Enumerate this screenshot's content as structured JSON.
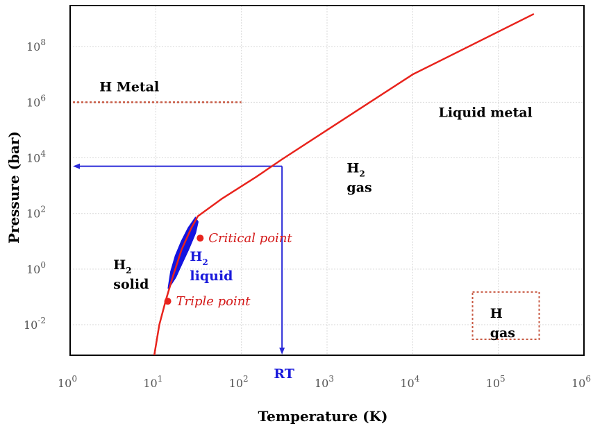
{
  "chart_data": {
    "type": "line",
    "title": "",
    "xlabel": "Temperature (K)",
    "ylabel": "Pressure (bar)",
    "xscale": "log",
    "yscale": "log",
    "xlim": [
      1,
      1000000
    ],
    "ylim": [
      0.0008,
      3000000000
    ],
    "grid": true,
    "x_ticks": [
      {
        "value": 1,
        "base": "10",
        "exp": "0"
      },
      {
        "value": 10,
        "base": "10",
        "exp": "1"
      },
      {
        "value": 100,
        "base": "10",
        "exp": "2"
      },
      {
        "value": 1000,
        "base": "10",
        "exp": "3"
      },
      {
        "value": 10000,
        "base": "10",
        "exp": "4"
      },
      {
        "value": 100000,
        "base": "10",
        "exp": "5"
      },
      {
        "value": 1000000,
        "base": "10",
        "exp": "6"
      }
    ],
    "y_ticks": [
      {
        "value": 0.01,
        "base": "10",
        "exp": "-2"
      },
      {
        "value": 1,
        "base": "10",
        "exp": "0"
      },
      {
        "value": 100,
        "base": "10",
        "exp": "2"
      },
      {
        "value": 10000,
        "base": "10",
        "exp": "4"
      },
      {
        "value": 1000000,
        "base": "10",
        "exp": "6"
      },
      {
        "value": 100000000,
        "base": "10",
        "exp": "8"
      }
    ],
    "series": [
      {
        "role": "phase-boundary",
        "color": "#e8231c",
        "points": [
          [
            9.6,
            0.0008
          ],
          [
            11,
            0.01
          ],
          [
            13,
            0.07
          ],
          [
            16,
            0.6
          ],
          [
            20,
            5
          ],
          [
            26,
            30
          ],
          [
            31,
            80
          ],
          [
            60,
            350
          ],
          [
            150,
            2100
          ],
          [
            300,
            9000
          ],
          [
            1000,
            100000
          ],
          [
            10000,
            10000000
          ],
          [
            260000,
            1500000000
          ]
        ]
      }
    ],
    "liquid_region": {
      "color": "#1414e0",
      "boundary": [
        [
          14,
          0.2
        ],
        [
          15,
          0.8
        ],
        [
          17,
          3
        ],
        [
          20,
          10
        ],
        [
          24,
          30
        ],
        [
          29,
          70
        ],
        [
          31,
          50
        ],
        [
          29,
          20
        ],
        [
          24,
          5
        ],
        [
          20,
          1.5
        ],
        [
          17,
          0.5
        ],
        [
          14,
          0.2
        ]
      ]
    },
    "points": [
      {
        "name": "critical-point",
        "x": 33,
        "y": 13,
        "label": "Critical point",
        "color": "#e8231c"
      },
      {
        "name": "triple-point",
        "x": 13.8,
        "y": 0.07,
        "label": "Triple point",
        "color": "#e8231c"
      }
    ],
    "metal_line": {
      "y": 1000000,
      "x_from": 1,
      "x_to": 100,
      "color": "#c85a44"
    },
    "room_temperature": {
      "x": 298,
      "y": 5000,
      "label": "RT",
      "color": "#2a2ad8"
    },
    "regions": [
      {
        "name": "h-metal",
        "text": "H Metal",
        "x": 2.2,
        "y": 2500000
      },
      {
        "name": "liquid-metal",
        "text": "Liquid metal",
        "x": 20000,
        "y": 300000
      },
      {
        "name": "h2-gas",
        "main": "H",
        "sub": "2",
        "text2": "gas",
        "x": 1700,
        "y": 3000
      },
      {
        "name": "h2-solid",
        "main": "H",
        "sub": "2",
        "text2": "solid",
        "x": 3.2,
        "y": 1
      },
      {
        "name": "h2-liquid",
        "main": "H",
        "sub": "2",
        "text2": "liquid",
        "x": 25,
        "y": 2,
        "color": "#1a1adb"
      },
      {
        "name": "h-gas",
        "main": "H",
        "text2": "gas",
        "x": 80000,
        "y": 0.018
      }
    ],
    "h_gas_box": {
      "x_from": 50000,
      "x_to": 300000,
      "y_from": 0.003,
      "y_to": 0.15,
      "color": "#c85a44"
    }
  }
}
